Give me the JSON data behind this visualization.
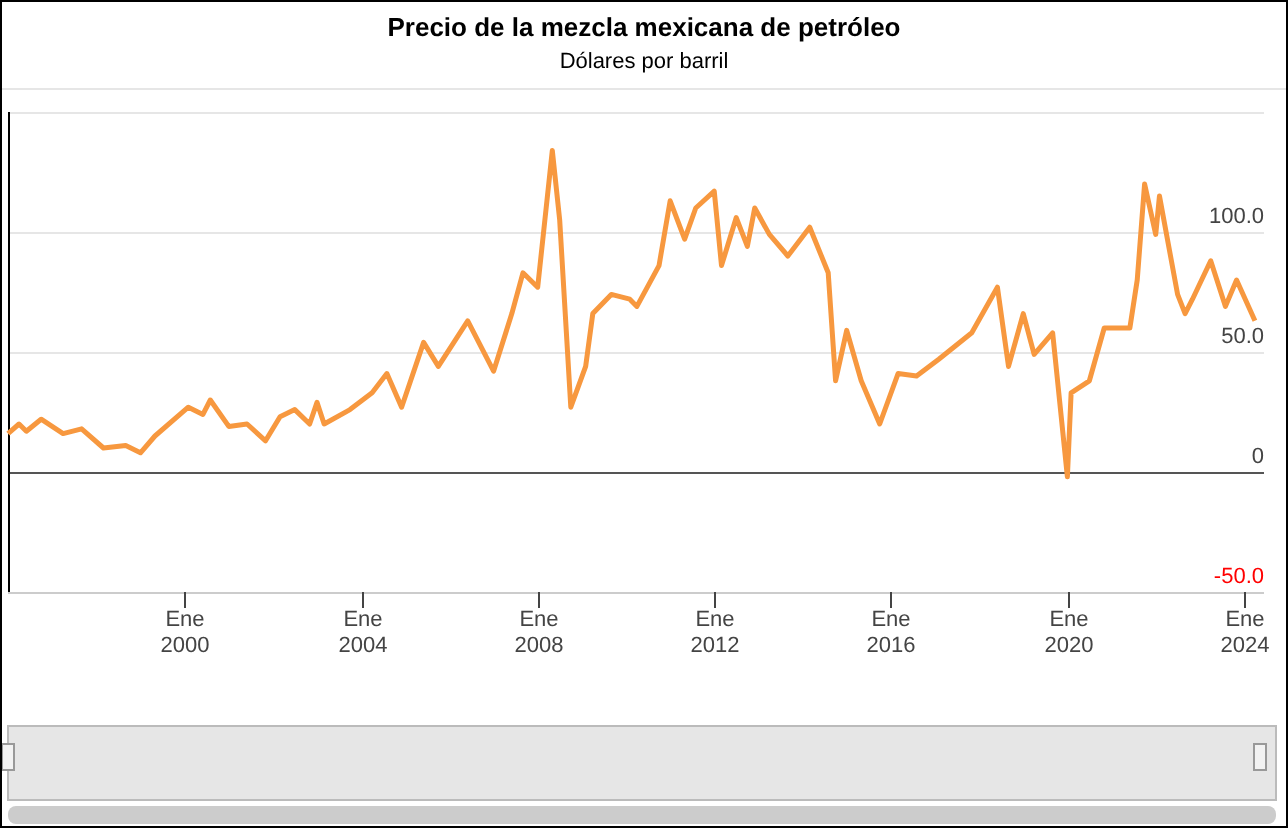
{
  "chart_data": {
    "type": "line",
    "title": "Precio de la mezcla mexicana de petróleo",
    "subtitle": "Dólares por barril",
    "x": [
      "1996-01",
      "1996-04",
      "1996-06",
      "1996-10",
      "1997-04",
      "1997-09",
      "1998-03",
      "1998-09",
      "1999-01",
      "1999-05",
      "2000-02",
      "2000-06",
      "2000-08",
      "2001-01",
      "2001-06",
      "2001-11",
      "2002-03",
      "2002-07",
      "2002-11",
      "2003-01",
      "2003-03",
      "2003-10",
      "2004-04",
      "2004-08",
      "2004-12",
      "2005-06",
      "2005-10",
      "2006-06",
      "2007-01",
      "2007-06",
      "2007-09",
      "2008-01",
      "2008-05",
      "2008-07",
      "2008-10",
      "2009-02",
      "2009-04",
      "2009-09",
      "2010-02",
      "2010-04",
      "2010-10",
      "2011-01",
      "2011-05",
      "2011-08",
      "2012-01",
      "2012-03",
      "2012-07",
      "2012-10",
      "2012-12",
      "2013-04",
      "2013-09",
      "2014-03",
      "2014-08",
      "2014-10",
      "2015-01",
      "2015-05",
      "2015-10",
      "2016-03",
      "2016-08",
      "2017-02",
      "2017-11",
      "2018-06",
      "2018-09",
      "2019-01",
      "2019-04",
      "2019-09",
      "2020-01",
      "2020-02",
      "2020-07",
      "2020-11",
      "2021-06",
      "2021-08",
      "2021-10",
      "2022-01",
      "2022-02",
      "2022-07",
      "2022-09",
      "2022-11",
      "2023-04",
      "2023-08",
      "2023-11",
      "2024-04"
    ],
    "series": [
      {
        "color": "#f7983f",
        "values": [
          16,
          20,
          17,
          22,
          16,
          18,
          10,
          11,
          8,
          15,
          27,
          24,
          30,
          19,
          20,
          13,
          23,
          26,
          20,
          29,
          20,
          26,
          33,
          41,
          27,
          54,
          44,
          63,
          42,
          66,
          83,
          77,
          134,
          105,
          27,
          44,
          66,
          74,
          72,
          69,
          86,
          113,
          97,
          110,
          117,
          86,
          106,
          94,
          110,
          99,
          90,
          102,
          83,
          38,
          59,
          38,
          20,
          41,
          40,
          47,
          58,
          77,
          44,
          66,
          49,
          58,
          -2,
          33,
          38,
          60,
          60,
          80,
          120,
          99,
          115,
          74,
          66,
          72,
          88,
          69,
          80,
          63
        ]
      }
    ],
    "xlim": [
      "1996-01-01",
      "2024-06-15"
    ],
    "xticks": [
      {
        "value": "2000-01",
        "label": "Ene\n2000"
      },
      {
        "value": "2004-01",
        "label": "Ene\n2004"
      },
      {
        "value": "2008-01",
        "label": "Ene\n2008"
      },
      {
        "value": "2012-01",
        "label": "Ene\n2012"
      },
      {
        "value": "2016-01",
        "label": "Ene\n2016"
      },
      {
        "value": "2020-01",
        "label": "Ene\n2020"
      },
      {
        "value": "2024-01",
        "label": "Ene\n2024"
      }
    ],
    "ylim": [
      -50,
      150
    ],
    "yticks": [
      {
        "value": -50,
        "label": "-50.0"
      },
      {
        "value": 0,
        "label": "0"
      },
      {
        "value": 50,
        "label": "50.0"
      },
      {
        "value": 100,
        "label": "100.0"
      },
      {
        "value": 150,
        "label": null
      }
    ],
    "grid": "y",
    "marker": "none",
    "line_style": "solid"
  }
}
